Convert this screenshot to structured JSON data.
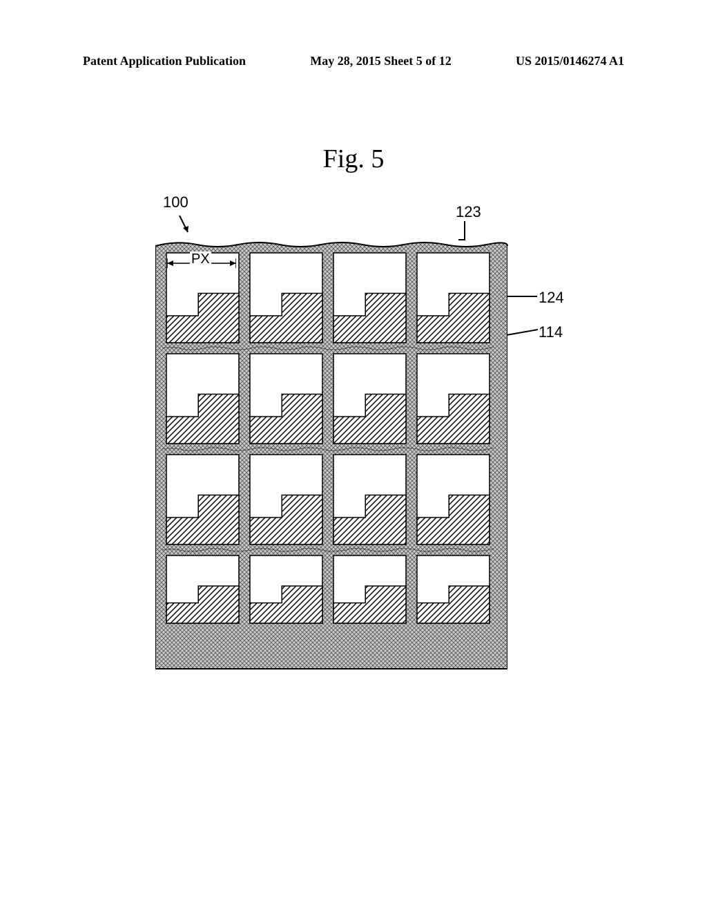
{
  "header": {
    "left": "Patent Application Publication",
    "center": "May 28, 2015  Sheet 5 of 12",
    "right": "US 2015/0146274 A1"
  },
  "figure": {
    "title": "Fig.  5",
    "refs": {
      "r100": "100",
      "r123": "123",
      "r124": "124",
      "r114": "114",
      "px": "PX"
    },
    "style": {
      "grid_fill": "#9a9a9a",
      "grid_stroke": "#000000",
      "electrode_fill": "#b8b8b8",
      "electrode_stroke": "#000000",
      "cell_bg": "#ffffff",
      "rows": 4,
      "cols": 4,
      "outer_w": 500,
      "outer_h": 608,
      "border_w": 16,
      "cell_gap": 16
    }
  }
}
